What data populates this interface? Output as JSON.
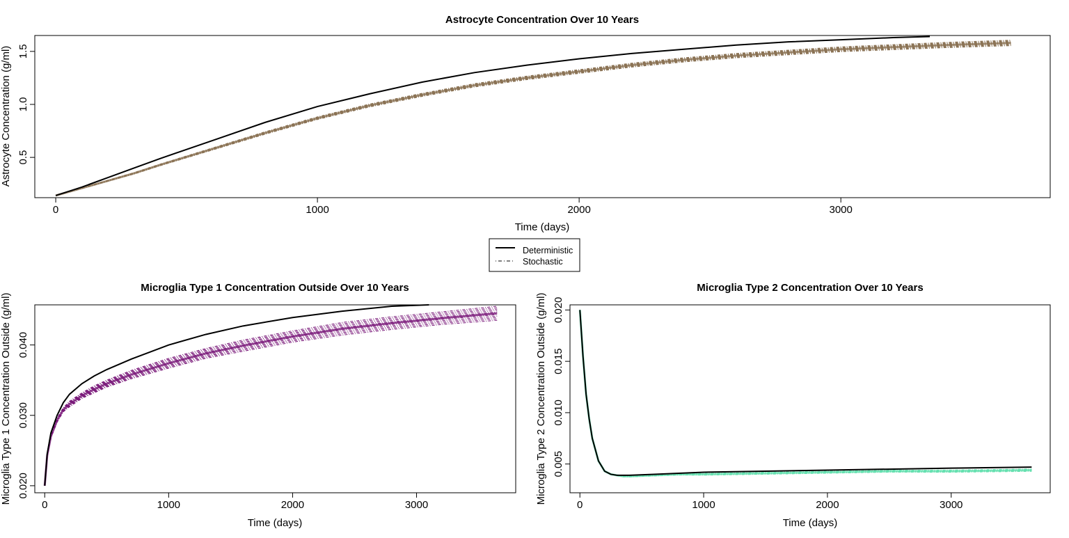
{
  "legend": {
    "entries": [
      {
        "label": "Deterministic",
        "style": "solid"
      },
      {
        "label": "Stochastic",
        "style": "dotdash"
      }
    ]
  },
  "chart_data": [
    {
      "type": "line",
      "title": "Astrocyte Concentration Over 10 Years",
      "xlabel": "Time (days)",
      "ylabel": "Astrocyte Concentration (g/ml)",
      "xlim": [
        -80,
        3800
      ],
      "ylim": [
        0.12,
        1.65
      ],
      "xticks": [
        0,
        1000,
        2000,
        3000
      ],
      "yticks": [
        0.5,
        1.0,
        1.5
      ],
      "ytick_labels": [
        "0.5",
        "1.0",
        "1.5"
      ],
      "stochastic_color": "#8b7355",
      "deterministic_color": "#000000",
      "series": [
        {
          "name": "Deterministic",
          "x": [
            0,
            100,
            200,
            300,
            400,
            600,
            800,
            1000,
            1200,
            1400,
            1600,
            1800,
            2000,
            2200,
            2400,
            2600,
            2800,
            3000,
            3200,
            3340
          ],
          "values": [
            0.14,
            0.22,
            0.31,
            0.4,
            0.49,
            0.66,
            0.83,
            0.98,
            1.1,
            1.21,
            1.3,
            1.37,
            1.43,
            1.48,
            1.52,
            1.56,
            1.59,
            1.61,
            1.63,
            1.64
          ]
        },
        {
          "name": "Stochastic",
          "x": [
            0,
            100,
            200,
            300,
            400,
            600,
            800,
            1000,
            1200,
            1400,
            1600,
            1800,
            2000,
            2200,
            2400,
            2600,
            2800,
            3000,
            3200,
            3400,
            3650
          ],
          "values": [
            0.14,
            0.21,
            0.28,
            0.35,
            0.43,
            0.58,
            0.73,
            0.87,
            0.99,
            1.09,
            1.18,
            1.25,
            1.31,
            1.37,
            1.42,
            1.46,
            1.49,
            1.52,
            1.54,
            1.56,
            1.58
          ],
          "spread": [
            0.0,
            0.003,
            0.005,
            0.007,
            0.008,
            0.01,
            0.012,
            0.013,
            0.014,
            0.015,
            0.016,
            0.017,
            0.018,
            0.019,
            0.02,
            0.021,
            0.022,
            0.023,
            0.024,
            0.025,
            0.026
          ]
        }
      ]
    },
    {
      "type": "line",
      "title": "Microglia Type 1 Concentration Outside Over 10 Years",
      "xlabel": "Time (days)",
      "ylabel": "Microglia Type 1 Concentration Outside (g/ml)",
      "xlim": [
        -80,
        3800
      ],
      "ylim": [
        0.019,
        0.0457
      ],
      "xticks": [
        0,
        1000,
        2000,
        3000
      ],
      "yticks": [
        0.02,
        0.03,
        0.04
      ],
      "ytick_labels": [
        "0.020",
        "0.030",
        "0.040"
      ],
      "stochastic_color": "#7a1a7a",
      "deterministic_color": "#000000",
      "series": [
        {
          "name": "Deterministic",
          "x": [
            0,
            20,
            50,
            100,
            150,
            200,
            300,
            400,
            500,
            700,
            1000,
            1300,
            1600,
            2000,
            2400,
            2800,
            3100
          ],
          "values": [
            0.02,
            0.0245,
            0.0275,
            0.03,
            0.0318,
            0.033,
            0.0345,
            0.0356,
            0.0365,
            0.038,
            0.04,
            0.0415,
            0.0427,
            0.0439,
            0.0448,
            0.0455,
            0.0458
          ]
        },
        {
          "name": "Stochastic",
          "x": [
            0,
            20,
            50,
            100,
            150,
            200,
            300,
            400,
            500,
            700,
            1000,
            1300,
            1600,
            2000,
            2400,
            2800,
            3200,
            3650
          ],
          "values": [
            0.02,
            0.0243,
            0.027,
            0.0293,
            0.0308,
            0.0316,
            0.0328,
            0.0337,
            0.0345,
            0.0358,
            0.0374,
            0.0388,
            0.0399,
            0.0412,
            0.0423,
            0.0431,
            0.0438,
            0.0445
          ],
          "spread": [
            0,
            0.0001,
            0.0002,
            0.0003,
            0.0003,
            0.0004,
            0.0004,
            0.0005,
            0.0005,
            0.0006,
            0.0007,
            0.0007,
            0.0008,
            0.0008,
            0.0009,
            0.0009,
            0.0009,
            0.001
          ]
        }
      ]
    },
    {
      "type": "line",
      "title": "Microglia Type 2 Concentration Over 10 Years",
      "xlabel": "Time (days)",
      "ylabel": "Microglia Type 2 Concentration Outside (g/ml)",
      "xlim": [
        -80,
        3800
      ],
      "ylim": [
        0.0022,
        0.0205
      ],
      "xticks": [
        0,
        1000,
        2000,
        3000
      ],
      "yticks": [
        0.005,
        0.01,
        0.015,
        0.02
      ],
      "ytick_labels": [
        "0.005",
        "0.010",
        "0.015",
        "0.020"
      ],
      "stochastic_color": "#66e0b0",
      "deterministic_color": "#000000",
      "series": [
        {
          "name": "Deterministic",
          "x": [
            0,
            25,
            50,
            75,
            100,
            150,
            200,
            250,
            300,
            350,
            400,
            600,
            800,
            1000,
            1500,
            2000,
            2500,
            3000,
            3650
          ],
          "values": [
            0.02,
            0.0155,
            0.0118,
            0.0094,
            0.0075,
            0.0053,
            0.0043,
            0.004,
            0.0039,
            0.0039,
            0.0039,
            0.004,
            0.0041,
            0.0042,
            0.0043,
            0.0044,
            0.0045,
            0.0046,
            0.0047
          ]
        },
        {
          "name": "Stochastic",
          "x": [
            0,
            25,
            50,
            75,
            100,
            150,
            200,
            250,
            300,
            350,
            400,
            600,
            800,
            1000,
            1500,
            2000,
            2500,
            3000,
            3650
          ],
          "values": [
            0.02,
            0.0155,
            0.0118,
            0.0094,
            0.0075,
            0.0053,
            0.0043,
            0.004,
            0.0039,
            0.0038,
            0.0038,
            0.0039,
            0.004,
            0.004,
            0.0041,
            0.0042,
            0.0043,
            0.0043,
            0.0044
          ],
          "spread": [
            0,
            0,
            0,
            0,
            0,
            2e-05,
            3e-05,
            4e-05,
            5e-05,
            5e-05,
            6e-05,
            7e-05,
            8e-05,
            9e-05,
            0.0001,
            0.0001,
            0.0001,
            0.00011,
            0.00012
          ]
        }
      ]
    }
  ]
}
